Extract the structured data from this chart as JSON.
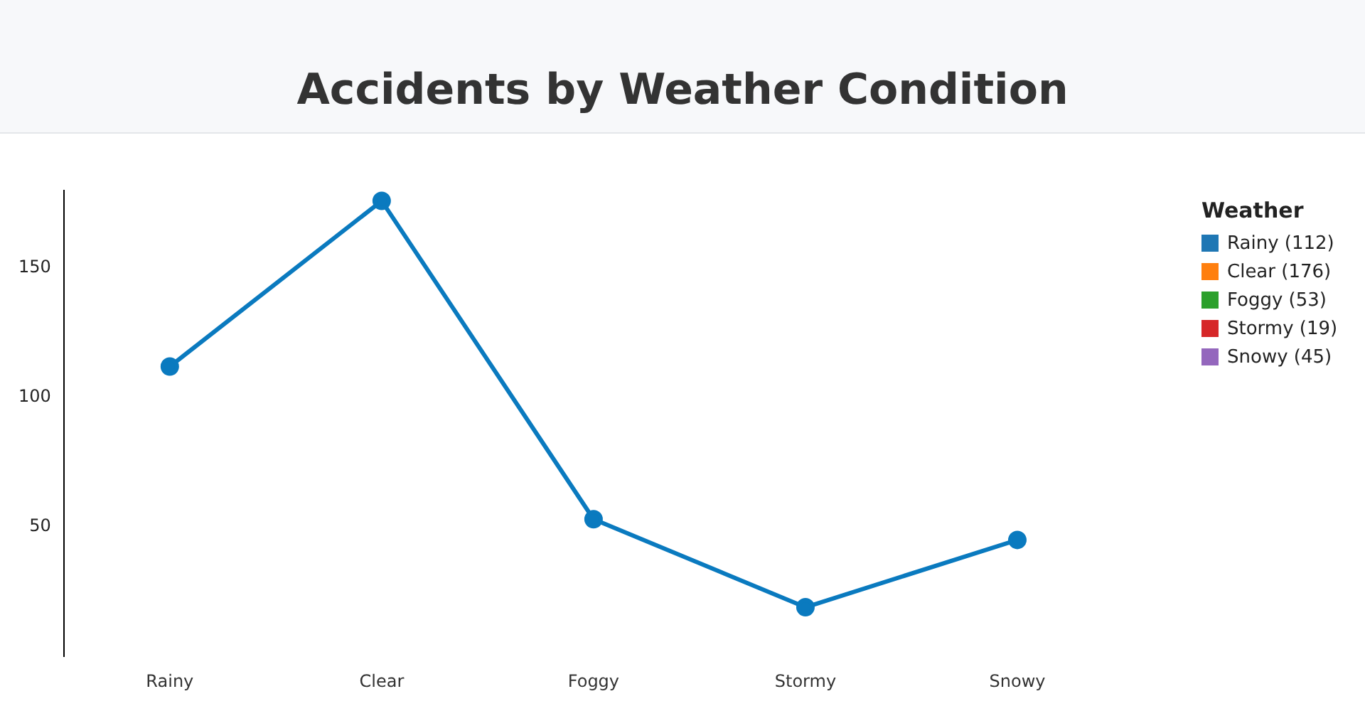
{
  "chart_data": {
    "type": "line",
    "title": "Accidents by Weather Condition",
    "legend_title": "Weather",
    "categories": [
      "Rainy",
      "Clear",
      "Foggy",
      "Stormy",
      "Snowy"
    ],
    "annotations": [
      "Rainy (112)",
      "Clear (176)",
      "Foggy (53)",
      "Stormy (19)",
      "Snowy (45)"
    ],
    "series": [
      {
        "color": "#0a7abf",
        "values": [
          112,
          176,
          53,
          19,
          45
        ]
      }
    ],
    "marker": "circle",
    "ylim": [
      0,
      180
    ],
    "yticks": [
      50,
      100,
      150
    ]
  }
}
